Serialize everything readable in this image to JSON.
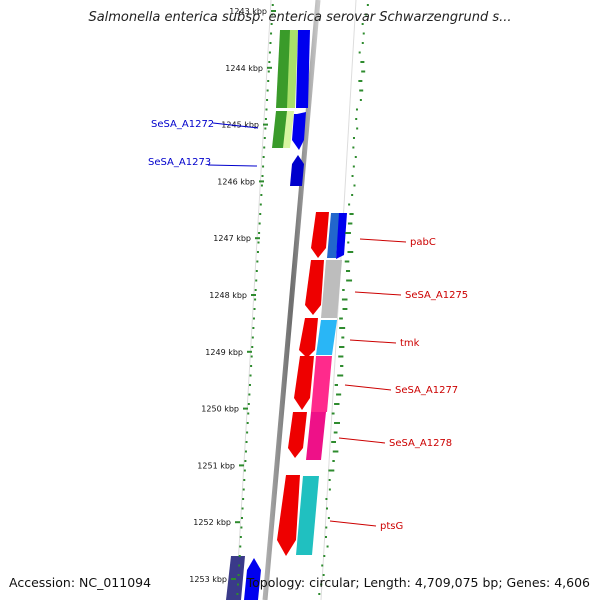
{
  "title": "Salmonella enterica subsp. enterica serovar Schwarzengrund s...",
  "footer": {
    "accession": "Accession: NC_011094",
    "topology": "Topology: circular; Length: 4,709,075 bp; Genes: 4,606"
  },
  "colors": {
    "backbone": "#8c8c8c",
    "gc_dots": "#2e8b2e",
    "label_left": "#0000cc",
    "label_right": "#cc0000"
  },
  "ticks": [
    "1243 kbp",
    "1244 kbp",
    "1245 kbp",
    "1246 kbp",
    "1247 kbp",
    "1248 kbp",
    "1249 kbp",
    "1250 kbp",
    "1251 kbp",
    "1252 kbp",
    "1253 kbp"
  ],
  "left_labels": [
    "SeSA_A1272",
    "SeSA_A1273"
  ],
  "right_labels": [
    "pabC",
    "SeSA_A1275",
    "tmk",
    "SeSA_A1277",
    "SeSA_A1278",
    "ptsG"
  ]
}
